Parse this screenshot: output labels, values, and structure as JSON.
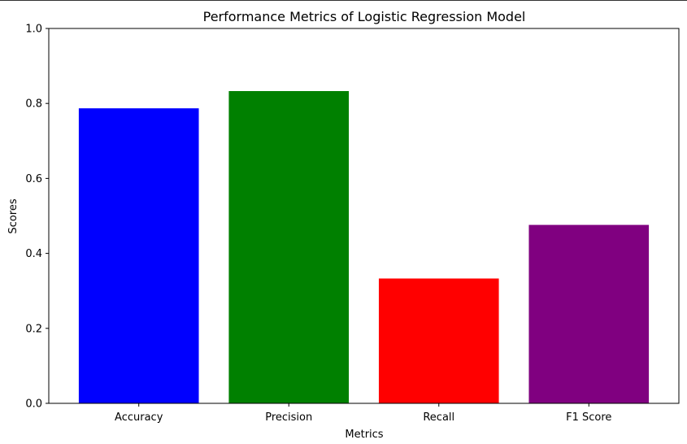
{
  "chart_data": {
    "type": "bar",
    "title": "Performance Metrics of Logistic Regression Model",
    "xlabel": "Metrics",
    "ylabel": "Scores",
    "categories": [
      "Accuracy",
      "Precision",
      "Recall",
      "F1 Score"
    ],
    "values": [
      0.787,
      0.833,
      0.333,
      0.476
    ],
    "colors": [
      "#0000ff",
      "#008000",
      "#ff0000",
      "#800080"
    ],
    "ylim": [
      0,
      1
    ],
    "yticks": [
      0.0,
      0.2,
      0.4,
      0.6,
      0.8,
      1.0
    ],
    "ytick_labels": [
      "0.0",
      "0.2",
      "0.4",
      "0.6",
      "0.8",
      "1.0"
    ],
    "grid": false,
    "legend": "none"
  }
}
